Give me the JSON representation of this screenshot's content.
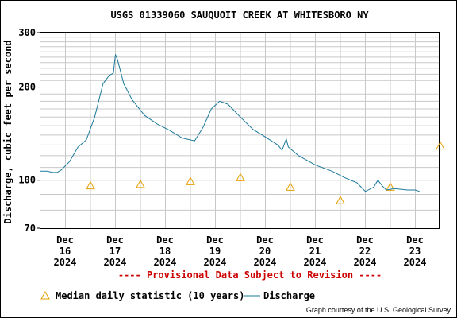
{
  "chart_data": {
    "type": "line",
    "title": "USGS 01339060 SAUQUOIT CREEK AT WHITESBORO NY",
    "ylabel": "Discharge, cubic feet per second",
    "yscale": "log",
    "ylim": [
      70,
      300
    ],
    "yticks": [
      70,
      100,
      200,
      300
    ],
    "x_tick_labels": [
      {
        "day": "Dec",
        "num": "16",
        "year": "2024"
      },
      {
        "day": "Dec",
        "num": "17",
        "year": "2024"
      },
      {
        "day": "Dec",
        "num": "18",
        "year": "2024"
      },
      {
        "day": "Dec",
        "num": "19",
        "year": "2024"
      },
      {
        "day": "Dec",
        "num": "20",
        "year": "2024"
      },
      {
        "day": "Dec",
        "num": "21",
        "year": "2024"
      },
      {
        "day": "Dec",
        "num": "22",
        "year": "2024"
      },
      {
        "day": "Dec",
        "num": "23",
        "year": "2024"
      }
    ],
    "grid": true,
    "legend_placement": "bottom",
    "provisional_note": "---- Provisional Data Subject to Revision ----",
    "credit": "Graph courtesy of the U.S. Geological Survey",
    "series": [
      {
        "name": "Median daily statistic (10 years)",
        "kind": "marker",
        "color": "#e6a000",
        "points": [
          {
            "x": "2024-12-16",
            "y": 96
          },
          {
            "x": "2024-12-17",
            "y": 97
          },
          {
            "x": "2024-12-18",
            "y": 99
          },
          {
            "x": "2024-12-19",
            "y": 102
          },
          {
            "x": "2024-12-20",
            "y": 95
          },
          {
            "x": "2024-12-21",
            "y": 86
          },
          {
            "x": "2024-12-22",
            "y": 95
          },
          {
            "x": "2024-12-23",
            "y": 129
          }
        ]
      },
      {
        "name": "Discharge",
        "kind": "line",
        "color": "#1a7a9a",
        "points": [
          {
            "x": "2024-12-15T12:00",
            "y": 107
          },
          {
            "x": "2024-12-15T15:00",
            "y": 107
          },
          {
            "x": "2024-12-15T18:00",
            "y": 106
          },
          {
            "x": "2024-12-15T20:00",
            "y": 106
          },
          {
            "x": "2024-12-15T22:00",
            "y": 108
          },
          {
            "x": "2024-12-16T02:00",
            "y": 115
          },
          {
            "x": "2024-12-16T06:00",
            "y": 128
          },
          {
            "x": "2024-12-16T10:00",
            "y": 135
          },
          {
            "x": "2024-12-16T14:00",
            "y": 160
          },
          {
            "x": "2024-12-16T18:00",
            "y": 205
          },
          {
            "x": "2024-12-16T21:00",
            "y": 218
          },
          {
            "x": "2024-12-16T23:00",
            "y": 222
          },
          {
            "x": "2024-12-17T00:00",
            "y": 255
          },
          {
            "x": "2024-12-17T01:00",
            "y": 245
          },
          {
            "x": "2024-12-17T04:00",
            "y": 205
          },
          {
            "x": "2024-12-17T08:00",
            "y": 182
          },
          {
            "x": "2024-12-17T14:00",
            "y": 162
          },
          {
            "x": "2024-12-17T20:00",
            "y": 152
          },
          {
            "x": "2024-12-18T02:00",
            "y": 145
          },
          {
            "x": "2024-12-18T08:00",
            "y": 137
          },
          {
            "x": "2024-12-18T14:00",
            "y": 134
          },
          {
            "x": "2024-12-18T18:00",
            "y": 148
          },
          {
            "x": "2024-12-18T22:00",
            "y": 170
          },
          {
            "x": "2024-12-19T02:00",
            "y": 180
          },
          {
            "x": "2024-12-19T06:00",
            "y": 176
          },
          {
            "x": "2024-12-19T12:00",
            "y": 160
          },
          {
            "x": "2024-12-19T18:00",
            "y": 146
          },
          {
            "x": "2024-12-20T00:00",
            "y": 138
          },
          {
            "x": "2024-12-20T06:00",
            "y": 130
          },
          {
            "x": "2024-12-20T08:00",
            "y": 125
          },
          {
            "x": "2024-12-20T10:00",
            "y": 136
          },
          {
            "x": "2024-12-20T11:00",
            "y": 128
          },
          {
            "x": "2024-12-20T16:00",
            "y": 120
          },
          {
            "x": "2024-12-21T00:00",
            "y": 112
          },
          {
            "x": "2024-12-21T08:00",
            "y": 107
          },
          {
            "x": "2024-12-21T14:00",
            "y": 102
          },
          {
            "x": "2024-12-21T20:00",
            "y": 98
          },
          {
            "x": "2024-12-22T00:00",
            "y": 92
          },
          {
            "x": "2024-12-22T04:00",
            "y": 95
          },
          {
            "x": "2024-12-22T06:00",
            "y": 100
          },
          {
            "x": "2024-12-22T08:00",
            "y": 96
          },
          {
            "x": "2024-12-22T10:00",
            "y": 93
          },
          {
            "x": "2024-12-22T14:00",
            "y": 94
          },
          {
            "x": "2024-12-22T20:00",
            "y": 93
          },
          {
            "x": "2024-12-23T00:00",
            "y": 93
          },
          {
            "x": "2024-12-23T02:00",
            "y": 92
          }
        ]
      }
    ]
  }
}
